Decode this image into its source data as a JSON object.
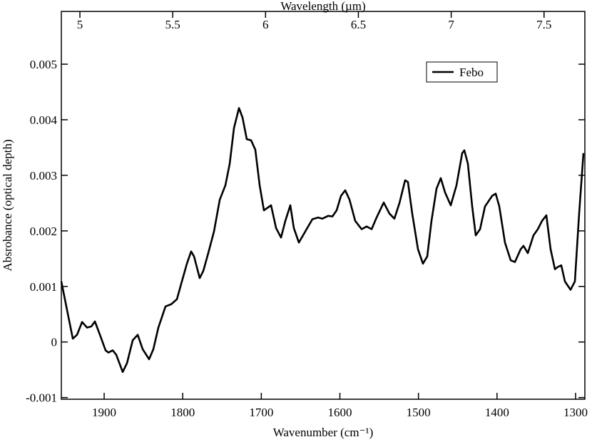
{
  "chart_data": {
    "type": "line",
    "xlabel": "Wavenumber (cm⁻¹)",
    "x2label": "Wavelength (µm)",
    "ylabel": "Absrobance (optical depth)",
    "xlim": [
      1954.5,
      1288.2
    ],
    "xticks": [
      1900,
      1800,
      1700,
      1600,
      1500,
      1400,
      1300
    ],
    "x2lim": [
      4.9,
      7.72
    ],
    "x2ticks": [
      5,
      5.5,
      6,
      6.5,
      7,
      7.5
    ],
    "ylim": [
      -0.00103,
      0.00595
    ],
    "yticks": [
      -0.001,
      0,
      0.001,
      0.002,
      0.003,
      0.004,
      0.005
    ],
    "legend": "upper right",
    "x": [
      1954.5,
      1946.3,
      1939.9,
      1934.5,
      1928.1,
      1921.8,
      1916.3,
      1911.8,
      1905.4,
      1898.2,
      1894.6,
      1889.1,
      1884.6,
      1876.4,
      1870.9,
      1863.7,
      1857.3,
      1851.0,
      1842.8,
      1837.4,
      1831.0,
      1821.9,
      1814.7,
      1807.4,
      1801.1,
      1794.7,
      1789.3,
      1785.6,
      1778.4,
      1773.8,
      1767.5,
      1760.2,
      1752.9,
      1745.7,
      1740.2,
      1734.8,
      1728.4,
      1723.9,
      1718.5,
      1713.0,
      1707.6,
      1702.1,
      1696.7,
      1687.6,
      1681.2,
      1674.9,
      1669.4,
      1663.1,
      1658.6,
      1652.2,
      1644.0,
      1635.0,
      1627.7,
      1622.2,
      1615.0,
      1609.5,
      1604.1,
      1598.6,
      1593.2,
      1587.7,
      1580.5,
      1572.3,
      1566.0,
      1559.6,
      1553.3,
      1544.2,
      1536.9,
      1530.6,
      1524.2,
      1517.0,
      1513.4,
      1507.9,
      1500.6,
      1494.3,
      1488.8,
      1483.4,
      1477.0,
      1471.6,
      1466.1,
      1458.9,
      1451.6,
      1444.3,
      1441.6,
      1437.1,
      1431.6,
      1427.1,
      1421.6,
      1415.3,
      1406.2,
      1401.7,
      1397.1,
      1389.9,
      1382.6,
      1377.2,
      1369.9,
      1366.3,
      1360.8,
      1353.6,
      1348.1,
      1342.7,
      1337.2,
      1331.8,
      1326.3,
      1322.7,
      1318.2,
      1313.6,
      1306.4,
      1300.9,
      1295.5,
      1290.0
    ],
    "series": [
      {
        "name": "Febo",
        "color": "#000000",
        "values": [
          0.00109,
          0.00051,
          6e-05,
          0.00013,
          0.00036,
          0.00026,
          0.00028,
          0.00037,
          0.00013,
          -0.00015,
          -0.00019,
          -0.00015,
          -0.00023,
          -0.00054,
          -0.00038,
          3e-05,
          0.00013,
          -0.00013,
          -0.00031,
          -0.00013,
          0.00026,
          0.00064,
          0.00068,
          0.00077,
          0.00109,
          0.00141,
          0.00163,
          0.00154,
          0.00115,
          0.00128,
          0.0016,
          0.00199,
          0.00256,
          0.00282,
          0.00321,
          0.00385,
          0.00421,
          0.00404,
          0.00365,
          0.00363,
          0.00346,
          0.00282,
          0.00237,
          0.00246,
          0.00205,
          0.00188,
          0.00218,
          0.00246,
          0.00205,
          0.00179,
          0.00199,
          0.00221,
          0.00224,
          0.00222,
          0.00227,
          0.00226,
          0.00237,
          0.00263,
          0.00273,
          0.00256,
          0.00218,
          0.00203,
          0.00208,
          0.00203,
          0.00224,
          0.00251,
          0.00231,
          0.00222,
          0.0025,
          0.00291,
          0.00288,
          0.00231,
          0.00167,
          0.00141,
          0.00154,
          0.00218,
          0.00276,
          0.00295,
          0.00269,
          0.00246,
          0.00282,
          0.0034,
          0.00345,
          0.00321,
          0.00244,
          0.00192,
          0.00203,
          0.00244,
          0.00263,
          0.00267,
          0.00244,
          0.00179,
          0.00147,
          0.00144,
          0.00167,
          0.00173,
          0.0016,
          0.00192,
          0.00203,
          0.00218,
          0.00228,
          0.00167,
          0.00131,
          0.00135,
          0.00138,
          0.00109,
          0.00094,
          0.00109,
          0.00231,
          0.0034
        ]
      }
    ]
  }
}
